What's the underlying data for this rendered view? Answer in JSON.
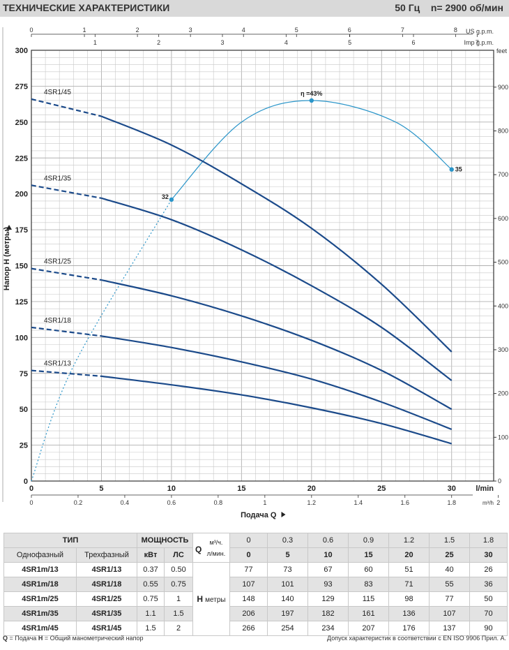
{
  "header": {
    "title": "ТЕХНИЧЕСКИЕ ХАРАКТЕРИСТИКИ",
    "freq": "50 Гц",
    "speed": "n= 2900 об/мин"
  },
  "chart_data": {
    "type": "line",
    "xlabel": "Подача Q",
    "ylabel": "Напор H (метры)",
    "xlim": [
      0,
      33
    ],
    "ylim": [
      0,
      300
    ],
    "x_units": "l/min",
    "x_ticks": [
      0,
      5,
      10,
      15,
      20,
      25,
      30
    ],
    "y_ticks": [
      0,
      25,
      50,
      75,
      100,
      125,
      150,
      175,
      200,
      225,
      250,
      275,
      300
    ],
    "feet_label": "feet",
    "feet_ticks": [
      0,
      100,
      200,
      300,
      400,
      500,
      600,
      700,
      800,
      900
    ],
    "us_label": "US g.p.m.",
    "us_ticks": [
      0,
      1,
      2,
      3,
      4,
      5,
      6,
      7,
      8
    ],
    "imp_label": "Imp g.p.m.",
    "imp_ticks": [
      1,
      2,
      3,
      4,
      5,
      6,
      7
    ],
    "m3h_label": "m³/h",
    "m3h_ticks": [
      0,
      0.2,
      0.4,
      0.6,
      0.8,
      1,
      1.2,
      1.4,
      1.6,
      1.8,
      2
    ],
    "series": [
      {
        "name": "4SR1/45",
        "x": [
          0,
          5,
          10,
          15,
          20,
          25,
          30
        ],
        "y": [
          266,
          254,
          234,
          207,
          176,
          137,
          90
        ],
        "dashed_until": 5
      },
      {
        "name": "4SR1/35",
        "x": [
          0,
          5,
          10,
          15,
          20,
          25,
          30
        ],
        "y": [
          206,
          197,
          182,
          161,
          136,
          107,
          70
        ],
        "dashed_until": 5
      },
      {
        "name": "4SR1/25",
        "x": [
          0,
          5,
          10,
          15,
          20,
          25,
          30
        ],
        "y": [
          148,
          140,
          129,
          115,
          98,
          77,
          50
        ],
        "dashed_until": 5
      },
      {
        "name": "4SR1/18",
        "x": [
          0,
          5,
          10,
          15,
          20,
          25,
          30
        ],
        "y": [
          107,
          101,
          93,
          83,
          71,
          55,
          36
        ],
        "dashed_until": 5
      },
      {
        "name": "4SR1/13",
        "x": [
          0,
          5,
          10,
          15,
          20,
          25,
          30
        ],
        "y": [
          77,
          73,
          67,
          60,
          51,
          40,
          26
        ],
        "dashed_until": 5
      }
    ],
    "efficiency": {
      "label": "η =43%",
      "points": [
        {
          "x": 10,
          "y": 196,
          "label": "32"
        },
        {
          "x": 20,
          "y": 265,
          "label": ""
        },
        {
          "x": 30,
          "y": 217,
          "label": "35"
        }
      ]
    }
  },
  "table": {
    "type_header": "ТИП",
    "power_header": "МОЩНОСТЬ",
    "q_header": "Q",
    "m3h_unit": "м³/ч.",
    "lmin_unit": "л/мин.",
    "single_phase": "Однофазный",
    "three_phase": "Трехфазный",
    "kw": "кВт",
    "hp": "ЛС",
    "h_label": "H",
    "h_unit": "метры",
    "q_m3h": [
      "0",
      "0.3",
      "0.6",
      "0.9",
      "1.2",
      "1.5",
      "1.8"
    ],
    "q_lmin": [
      "0",
      "5",
      "10",
      "15",
      "20",
      "25",
      "30"
    ],
    "rows": [
      {
        "single": "4SR1m/13",
        "three": "4SR1/13",
        "kw": "0.37",
        "hp": "0.50",
        "h": [
          "77",
          "73",
          "67",
          "60",
          "51",
          "40",
          "26"
        ]
      },
      {
        "single": "4SR1m/18",
        "three": "4SR1/18",
        "kw": "0.55",
        "hp": "0.75",
        "h": [
          "107",
          "101",
          "93",
          "83",
          "71",
          "55",
          "36"
        ]
      },
      {
        "single": "4SR1m/25",
        "three": "4SR1/25",
        "kw": "0.75",
        "hp": "1",
        "h": [
          "148",
          "140",
          "129",
          "115",
          "98",
          "77",
          "50"
        ]
      },
      {
        "single": "4SR1m/35",
        "three": "4SR1/35",
        "kw": "1.1",
        "hp": "1.5",
        "h": [
          "206",
          "197",
          "182",
          "161",
          "136",
          "107",
          "70"
        ]
      },
      {
        "single": "4SR1m/45",
        "three": "4SR1/45",
        "kw": "1.5",
        "hp": "2",
        "h": [
          "266",
          "254",
          "234",
          "207",
          "176",
          "137",
          "90"
        ]
      }
    ]
  },
  "footer": {
    "q_key": "Q",
    "q_def": " = Подача  ",
    "h_key": "H",
    "h_def": " = Общий манометрический напор",
    "right": "Допуск характеристик в соответствии с EN ISO 9906 Прил. А."
  },
  "colors": {
    "curve": "#1b4a8a",
    "efficiency": "#2a95c9",
    "grid": "#c8c8c8",
    "header_bg": "#d9d9d9"
  }
}
